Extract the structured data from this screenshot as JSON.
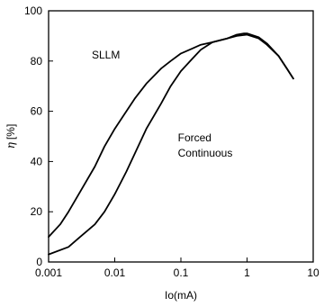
{
  "chart_data": {
    "type": "line",
    "title": "",
    "xlabel": "Io(mA)",
    "ylabel": "η [%]",
    "ylabel_parts": {
      "symbol": "η",
      "unit": "[%]"
    },
    "xscale": "log",
    "xlim": [
      0.001,
      10
    ],
    "ylim": [
      0,
      100
    ],
    "xticks": [
      0.001,
      0.01,
      0.1,
      1,
      10
    ],
    "xtick_labels": [
      "0.001",
      "0.01",
      "0.1",
      "1",
      "10"
    ],
    "yticks": [
      0,
      20,
      40,
      60,
      80,
      100
    ],
    "ytick_labels": [
      "0",
      "20",
      "40",
      "60",
      "80",
      "100"
    ],
    "grid": false,
    "colors": {
      "line": "#000000",
      "axis": "#000000",
      "background": "#ffffff"
    },
    "annotations": [
      {
        "text": "SLLM",
        "series": "SLLM",
        "x": 0.0045,
        "y": 81
      },
      {
        "text": "Forced",
        "series": "Forced Continuous",
        "x": 0.09,
        "y": 48
      },
      {
        "text": "Continuous",
        "series": "Forced Continuous",
        "x": 0.09,
        "y": 42
      }
    ],
    "series": [
      {
        "name": "SLLM",
        "points": [
          [
            0.001,
            10
          ],
          [
            0.0015,
            15
          ],
          [
            0.002,
            20
          ],
          [
            0.003,
            28
          ],
          [
            0.005,
            38
          ],
          [
            0.007,
            46
          ],
          [
            0.01,
            53
          ],
          [
            0.015,
            60
          ],
          [
            0.02,
            65
          ],
          [
            0.03,
            71
          ],
          [
            0.05,
            77
          ],
          [
            0.07,
            80
          ],
          [
            0.1,
            83
          ],
          [
            0.15,
            85
          ],
          [
            0.2,
            86.5
          ],
          [
            0.3,
            87.5
          ],
          [
            0.5,
            89
          ],
          [
            0.7,
            90
          ],
          [
            1,
            90.5
          ],
          [
            1.5,
            89
          ],
          [
            2,
            86.5
          ],
          [
            3,
            82
          ],
          [
            4,
            77
          ],
          [
            5,
            73
          ]
        ]
      },
      {
        "name": "Forced Continuous",
        "points": [
          [
            0.001,
            3
          ],
          [
            0.002,
            6
          ],
          [
            0.003,
            10
          ],
          [
            0.005,
            15
          ],
          [
            0.007,
            20
          ],
          [
            0.01,
            27
          ],
          [
            0.015,
            36
          ],
          [
            0.02,
            43
          ],
          [
            0.03,
            53
          ],
          [
            0.05,
            63
          ],
          [
            0.07,
            70
          ],
          [
            0.1,
            76
          ],
          [
            0.15,
            81
          ],
          [
            0.2,
            84.5
          ],
          [
            0.3,
            87.5
          ],
          [
            0.5,
            89
          ],
          [
            0.7,
            90.5
          ],
          [
            0.9,
            91
          ],
          [
            1,
            91
          ],
          [
            1.5,
            89.5
          ],
          [
            2,
            87
          ],
          [
            3,
            82
          ],
          [
            4,
            77
          ],
          [
            5,
            73
          ]
        ]
      }
    ]
  }
}
